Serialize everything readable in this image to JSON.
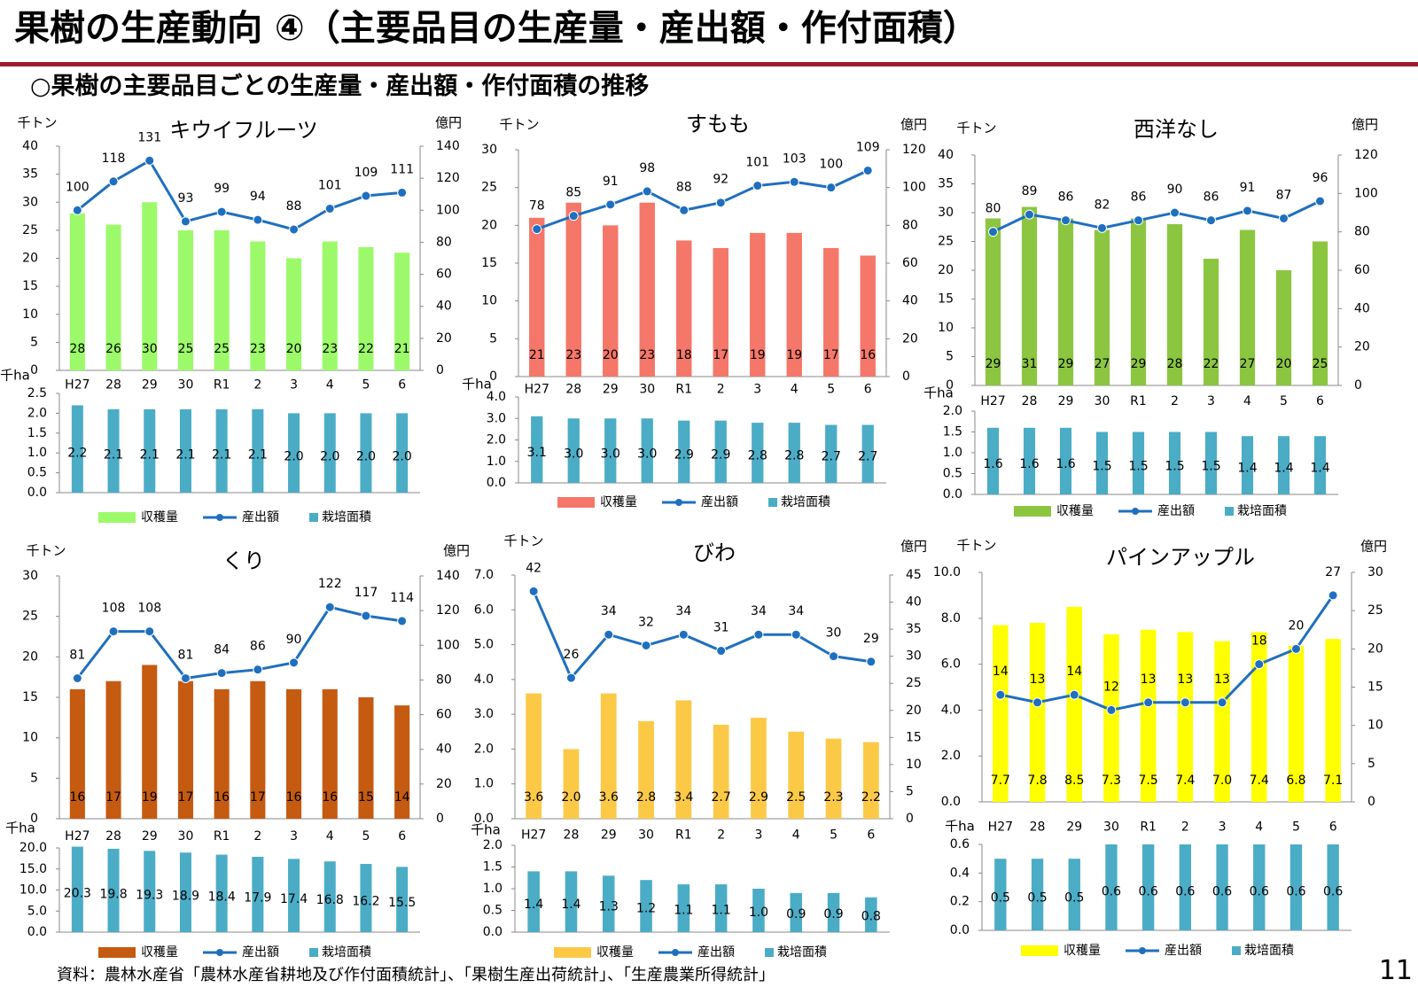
{
  "page": {
    "title": "果樹の生産動向 ④（主要品目の生産量・産出額・作付面積）",
    "subtitle": "○果樹の主要品目ごとの生産量・産出額・作付面積の推移",
    "source": "資料：農林水産省「農林水産省耕地及び作付面積統計」、「果樹生産出荷統計」、「生産農業所得統計」",
    "page_number": "11",
    "colors": {
      "title_rule": "#9b1c31",
      "line": "#1f6fbf",
      "area_bar": "#4bacc6",
      "axis": "#888888"
    }
  },
  "chart_data": [
    {
      "type": "bar",
      "title": "キウイフルーツ",
      "categories": [
        "H27",
        "28",
        "29",
        "30",
        "R1",
        "2",
        "3",
        "4",
        "5",
        "6"
      ],
      "bar_color": "#9cfa6a",
      "left_unit": "千トン",
      "right_unit": "億円",
      "bottom_unit": "千ha",
      "ylim_left": [
        0,
        40
      ],
      "yticks_left": [
        "0",
        "5",
        "10",
        "15",
        "20",
        "25",
        "30",
        "35",
        "40"
      ],
      "ylim_right": [
        0,
        140
      ],
      "yticks_right": [
        "0",
        "20",
        "40",
        "60",
        "80",
        "100",
        "120",
        "140"
      ],
      "ylim_area": [
        0,
        2.5
      ],
      "yticks_area": [
        "0.0",
        "0.5",
        "1.0",
        "1.5",
        "2.0",
        "2.5"
      ],
      "series": [
        {
          "name": "収穫量",
          "values": [
            28,
            26,
            30,
            25,
            25,
            23,
            20,
            23,
            22,
            21
          ],
          "labels": [
            "28",
            "26",
            "30",
            "25",
            "25",
            "23",
            "20",
            "23",
            "22",
            "21"
          ]
        },
        {
          "name": "産出額",
          "values": [
            100,
            118,
            131,
            93,
            99,
            94,
            88,
            101,
            109,
            111
          ],
          "labels": [
            "100",
            "118",
            "131",
            "93",
            "99",
            "94",
            "88",
            "101",
            "109",
            "111"
          ]
        },
        {
          "name": "栽培面積",
          "values": [
            2.2,
            2.1,
            2.1,
            2.1,
            2.1,
            2.1,
            2.0,
            2.0,
            2.0,
            2.0
          ],
          "labels": [
            "2.2",
            "2.1",
            "2.1",
            "2.1",
            "2.1",
            "2.1",
            "2.0",
            "2.0",
            "2.0",
            "2.0"
          ]
        }
      ]
    },
    {
      "type": "bar",
      "title": "すもも",
      "categories": [
        "H27",
        "28",
        "29",
        "30",
        "R1",
        "2",
        "3",
        "4",
        "5",
        "6"
      ],
      "bar_color": "#f4776a",
      "left_unit": "千トン",
      "right_unit": "億円",
      "bottom_unit": "千ha",
      "ylim_left": [
        0,
        30
      ],
      "yticks_left": [
        "0",
        "5",
        "10",
        "15",
        "20",
        "25",
        "30"
      ],
      "ylim_right": [
        0,
        120
      ],
      "yticks_right": [
        "0",
        "20",
        "40",
        "60",
        "80",
        "100",
        "120"
      ],
      "ylim_area": [
        0,
        4.0
      ],
      "yticks_area": [
        "0.0",
        "1.0",
        "2.0",
        "3.0",
        "4.0"
      ],
      "series": [
        {
          "name": "収穫量",
          "values": [
            21,
            23,
            20,
            23,
            18,
            17,
            19,
            19,
            17,
            16
          ],
          "labels": [
            "21",
            "23",
            "20",
            "23",
            "18",
            "17",
            "19",
            "19",
            "17",
            "16"
          ]
        },
        {
          "name": "産出額",
          "values": [
            78,
            85,
            91,
            98,
            88,
            92,
            101,
            103,
            100,
            109
          ],
          "labels": [
            "78",
            "85",
            "91",
            "98",
            "88",
            "92",
            "101",
            "103",
            "100",
            "109"
          ]
        },
        {
          "name": "栽培面積",
          "values": [
            3.1,
            3.0,
            3.0,
            3.0,
            2.9,
            2.9,
            2.8,
            2.8,
            2.7,
            2.7
          ],
          "labels": [
            "3.1",
            "3.0",
            "3.0",
            "3.0",
            "2.9",
            "2.9",
            "2.8",
            "2.8",
            "2.7",
            "2.7"
          ]
        }
      ]
    },
    {
      "type": "bar",
      "title": "西洋なし",
      "categories": [
        "H27",
        "28",
        "29",
        "30",
        "R1",
        "2",
        "3",
        "4",
        "5",
        "6"
      ],
      "bar_color": "#8cc641",
      "left_unit": "千トン",
      "right_unit": "億円",
      "bottom_unit": "千ha",
      "ylim_left": [
        0,
        40
      ],
      "yticks_left": [
        "0",
        "5",
        "10",
        "15",
        "20",
        "25",
        "30",
        "35",
        "40"
      ],
      "ylim_right": [
        0,
        120
      ],
      "yticks_right": [
        "0",
        "20",
        "40",
        "60",
        "80",
        "100",
        "120"
      ],
      "ylim_area": [
        0,
        2.0
      ],
      "yticks_area": [
        "0.0",
        "0.5",
        "1.0",
        "1.5",
        "2.0"
      ],
      "series": [
        {
          "name": "収穫量",
          "values": [
            29,
            31,
            29,
            27,
            29,
            28,
            22,
            27,
            20,
            25
          ],
          "labels": [
            "29",
            "31",
            "29",
            "27",
            "29",
            "28",
            "22",
            "27",
            "20",
            "25"
          ]
        },
        {
          "name": "産出額",
          "values": [
            80,
            89,
            86,
            82,
            86,
            90,
            86,
            91,
            87,
            96
          ],
          "labels": [
            "80",
            "89",
            "86",
            "82",
            "86",
            "90",
            "86",
            "91",
            "87",
            "96"
          ]
        },
        {
          "name": "栽培面積",
          "values": [
            1.6,
            1.6,
            1.6,
            1.5,
            1.5,
            1.5,
            1.5,
            1.4,
            1.4,
            1.4
          ],
          "labels": [
            "1.6",
            "1.6",
            "1.6",
            "1.5",
            "1.5",
            "1.5",
            "1.5",
            "1.4",
            "1.4",
            "1.4"
          ]
        }
      ]
    },
    {
      "type": "bar",
      "title": "くり",
      "categories": [
        "H27",
        "28",
        "29",
        "30",
        "R1",
        "2",
        "3",
        "4",
        "5",
        "6"
      ],
      "bar_color": "#c55a11",
      "left_unit": "千トン",
      "right_unit": "億円",
      "bottom_unit": "千ha",
      "ylim_left": [
        0,
        30
      ],
      "yticks_left": [
        "0",
        "5",
        "10",
        "15",
        "20",
        "25",
        "30"
      ],
      "ylim_right": [
        0,
        140
      ],
      "yticks_right": [
        "0",
        "20",
        "40",
        "60",
        "80",
        "100",
        "120",
        "140"
      ],
      "ylim_area": [
        0,
        20.0
      ],
      "yticks_area": [
        "0.0",
        "5.0",
        "10.0",
        "15.0",
        "20.0"
      ],
      "series": [
        {
          "name": "収穫量",
          "values": [
            16,
            17,
            19,
            17,
            16,
            17,
            16,
            16,
            15,
            14
          ],
          "labels": [
            "16",
            "17",
            "19",
            "17",
            "16",
            "17",
            "16",
            "16",
            "15",
            "14"
          ]
        },
        {
          "name": "産出額",
          "values": [
            81,
            108,
            108,
            81,
            84,
            86,
            90,
            122,
            117,
            114
          ],
          "labels": [
            "81",
            "108",
            "108",
            "81",
            "84",
            "86",
            "90",
            "122",
            "117",
            "114"
          ]
        },
        {
          "name": "栽培面積",
          "values": [
            20.3,
            19.8,
            19.3,
            18.9,
            18.4,
            17.9,
            17.4,
            16.8,
            16.2,
            15.5
          ],
          "labels": [
            "20.3",
            "19.8",
            "19.3",
            "18.9",
            "18.4",
            "17.9",
            "17.4",
            "16.8",
            "16.2",
            "15.5"
          ]
        }
      ]
    },
    {
      "type": "bar",
      "title": "びわ",
      "categories": [
        "H27",
        "28",
        "29",
        "30",
        "R1",
        "2",
        "3",
        "4",
        "5",
        "6"
      ],
      "bar_color": "#fcc947",
      "left_unit": "千トン",
      "right_unit": "億円",
      "bottom_unit": "千ha",
      "ylim_left": [
        0,
        7.0
      ],
      "yticks_left": [
        "0.0",
        "1.0",
        "2.0",
        "3.0",
        "4.0",
        "5.0",
        "6.0",
        "7.0"
      ],
      "ylim_right": [
        0,
        45
      ],
      "yticks_right": [
        "0",
        "5",
        "10",
        "15",
        "20",
        "25",
        "30",
        "35",
        "40",
        "45"
      ],
      "ylim_area": [
        0,
        2.0
      ],
      "yticks_area": [
        "0.0",
        "0.5",
        "1.0",
        "1.5",
        "2.0"
      ],
      "series": [
        {
          "name": "収穫量",
          "values": [
            3.6,
            2.0,
            3.6,
            2.8,
            3.4,
            2.7,
            2.9,
            2.5,
            2.3,
            2.2
          ],
          "labels": [
            "3.6",
            "2.0",
            "3.6",
            "2.8",
            "3.4",
            "2.7",
            "2.9",
            "2.5",
            "2.3",
            "2.2"
          ]
        },
        {
          "name": "産出額",
          "values": [
            42,
            26,
            34,
            32,
            34,
            31,
            34,
            34,
            30,
            29
          ],
          "labels": [
            "42",
            "26",
            "34",
            "32",
            "34",
            "31",
            "34",
            "34",
            "30",
            "29"
          ]
        },
        {
          "name": "栽培面積",
          "values": [
            1.4,
            1.4,
            1.3,
            1.2,
            1.1,
            1.1,
            1.0,
            0.9,
            0.9,
            0.8
          ],
          "labels": [
            "1.4",
            "1.4",
            "1.3",
            "1.2",
            "1.1",
            "1.1",
            "1.0",
            "0.9",
            "0.9",
            "0.8"
          ]
        }
      ]
    },
    {
      "type": "bar",
      "title": "パインアップル",
      "categories": [
        "H27",
        "28",
        "29",
        "30",
        "R1",
        "2",
        "3",
        "4",
        "5",
        "6"
      ],
      "bar_color": "#ffff00",
      "left_unit": "千トン",
      "right_unit": "億円",
      "bottom_unit": "千ha",
      "ylim_left": [
        0,
        10.0
      ],
      "yticks_left": [
        "0.0",
        "2.0",
        "4.0",
        "6.0",
        "8.0",
        "10.0"
      ],
      "ylim_right": [
        0,
        30
      ],
      "yticks_right": [
        "0",
        "5",
        "10",
        "15",
        "20",
        "25",
        "30"
      ],
      "ylim_area": [
        0,
        0.6
      ],
      "yticks_area": [
        "0.0",
        "0.2",
        "0.4",
        "0.6"
      ],
      "series": [
        {
          "name": "収穫量",
          "values": [
            7.7,
            7.8,
            8.5,
            7.3,
            7.5,
            7.4,
            7.0,
            7.4,
            6.8,
            7.1
          ],
          "labels": [
            "7.7",
            "7.8",
            "8.5",
            "7.3",
            "7.5",
            "7.4",
            "7.0",
            "7.4",
            "6.8",
            "7.1"
          ]
        },
        {
          "name": "産出額",
          "values": [
            14,
            13,
            14,
            12,
            13,
            13,
            13,
            18,
            20,
            27
          ],
          "labels": [
            "14",
            "13",
            "14",
            "12",
            "13",
            "13",
            "13",
            "18",
            "20",
            "27"
          ]
        },
        {
          "name": "栽培面積",
          "values": [
            0.5,
            0.5,
            0.5,
            0.6,
            0.6,
            0.6,
            0.6,
            0.6,
            0.6,
            0.6
          ],
          "labels": [
            "0.5",
            "0.5",
            "0.5",
            "0.6",
            "0.6",
            "0.6",
            "0.6",
            "0.6",
            "0.6",
            "0.6"
          ]
        }
      ]
    }
  ]
}
